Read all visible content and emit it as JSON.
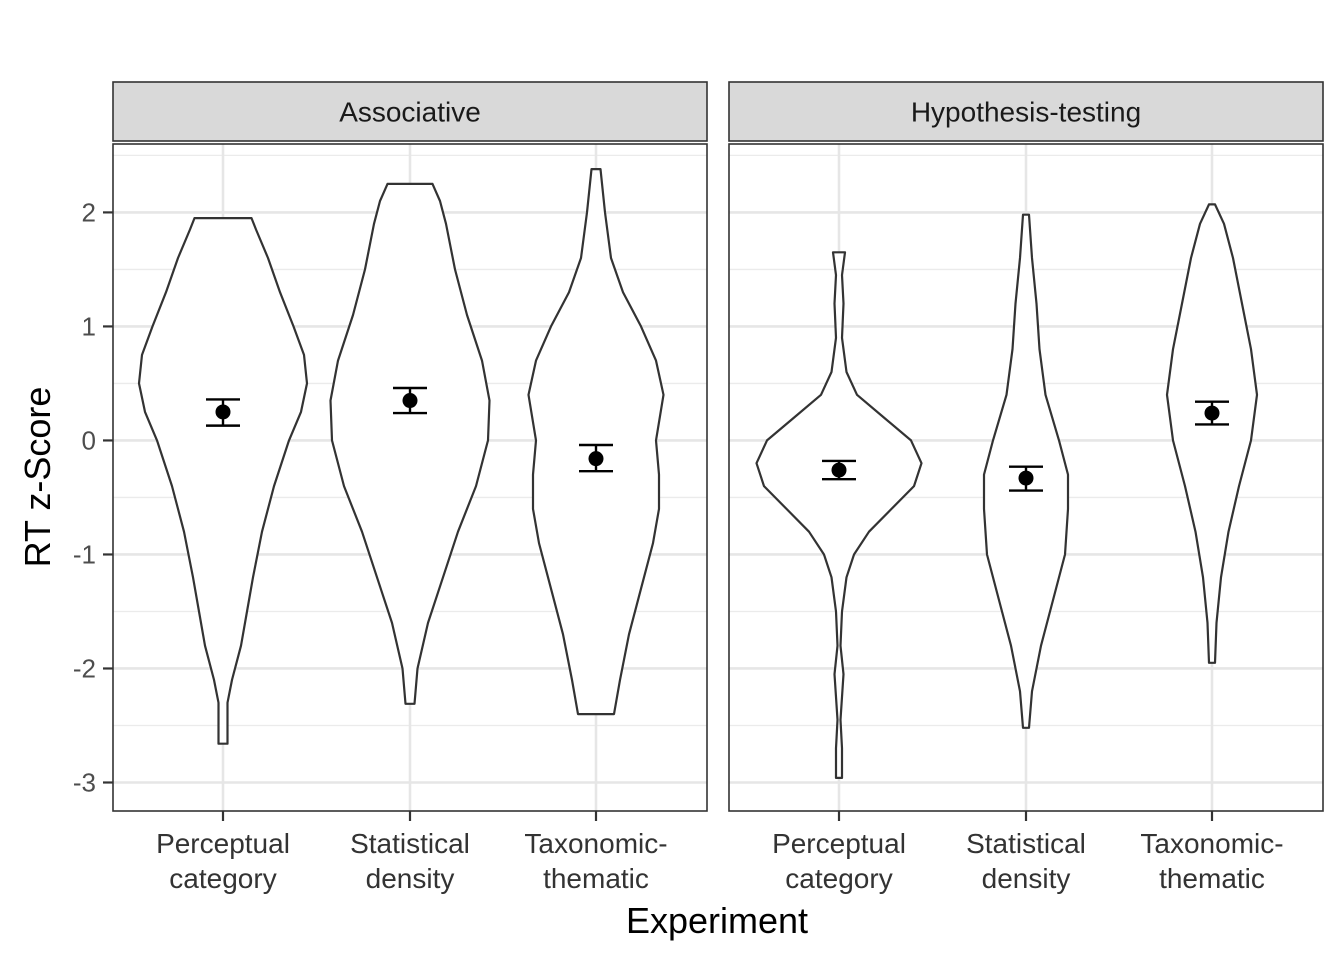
{
  "chart_data": {
    "type": "violin",
    "xlabel": "Experiment",
    "ylabel": "RT z-Score",
    "ylim": [
      -3.25,
      2.6
    ],
    "yticks": [
      -3,
      -2,
      -1,
      0,
      1,
      2
    ],
    "ytick_labels": [
      "-3",
      "-2",
      "-1",
      "0",
      "1",
      "2"
    ],
    "grid": true,
    "categories": [
      {
        "key": "perceptual",
        "lines": [
          "Perceptual",
          "category"
        ]
      },
      {
        "key": "statistical",
        "lines": [
          "Statistical",
          "density"
        ]
      },
      {
        "key": "taxonomic",
        "lines": [
          "Taxonomic-",
          "thematic"
        ]
      }
    ],
    "panels": [
      {
        "title": "Associative",
        "groups": [
          {
            "category": "perceptual",
            "mean": 0.25,
            "ci_low": 0.13,
            "ci_high": 0.36,
            "violin": [
              [
                -2.66,
                0.03
              ],
              [
                -2.3,
                0.03
              ],
              [
                -2.1,
                0.06
              ],
              [
                -1.8,
                0.12
              ],
              [
                -1.5,
                0.16
              ],
              [
                -1.2,
                0.2
              ],
              [
                -0.8,
                0.26
              ],
              [
                -0.4,
                0.34
              ],
              [
                0.0,
                0.44
              ],
              [
                0.25,
                0.52
              ],
              [
                0.5,
                0.56
              ],
              [
                0.75,
                0.54
              ],
              [
                1.0,
                0.47
              ],
              [
                1.3,
                0.38
              ],
              [
                1.6,
                0.3
              ],
              [
                1.85,
                0.22
              ],
              [
                1.95,
                0.19
              ]
            ]
          },
          {
            "category": "statistical",
            "mean": 0.35,
            "ci_low": 0.24,
            "ci_high": 0.46,
            "violin": [
              [
                -2.31,
                0.03
              ],
              [
                -2.0,
                0.05
              ],
              [
                -1.6,
                0.12
              ],
              [
                -1.2,
                0.22
              ],
              [
                -0.8,
                0.32
              ],
              [
                -0.4,
                0.44
              ],
              [
                0.0,
                0.52
              ],
              [
                0.35,
                0.53
              ],
              [
                0.7,
                0.48
              ],
              [
                1.1,
                0.38
              ],
              [
                1.5,
                0.3
              ],
              [
                1.9,
                0.24
              ],
              [
                2.1,
                0.2
              ],
              [
                2.25,
                0.15
              ]
            ]
          },
          {
            "category": "taxonomic",
            "mean": -0.16,
            "ci_low": -0.27,
            "ci_high": -0.04,
            "violin": [
              [
                -2.4,
                0.12
              ],
              [
                -2.1,
                0.16
              ],
              [
                -1.7,
                0.22
              ],
              [
                -1.3,
                0.3
              ],
              [
                -0.9,
                0.38
              ],
              [
                -0.6,
                0.42
              ],
              [
                -0.3,
                0.42
              ],
              [
                0.0,
                0.4
              ],
              [
                0.4,
                0.45
              ],
              [
                0.7,
                0.4
              ],
              [
                1.0,
                0.3
              ],
              [
                1.3,
                0.18
              ],
              [
                1.6,
                0.1
              ],
              [
                2.0,
                0.06
              ],
              [
                2.38,
                0.03
              ]
            ]
          }
        ]
      },
      {
        "title": "Hypothesis-testing",
        "groups": [
          {
            "category": "perceptual",
            "mean": -0.26,
            "ci_low": -0.34,
            "ci_high": -0.18,
            "violin": [
              [
                -2.96,
                0.02
              ],
              [
                -2.7,
                0.02
              ],
              [
                -2.45,
                0.01
              ],
              [
                -2.05,
                0.03
              ],
              [
                -1.8,
                0.01
              ],
              [
                -1.5,
                0.02
              ],
              [
                -1.2,
                0.05
              ],
              [
                -1.0,
                0.1
              ],
              [
                -0.8,
                0.2
              ],
              [
                -0.6,
                0.35
              ],
              [
                -0.4,
                0.5
              ],
              [
                -0.2,
                0.55
              ],
              [
                0.0,
                0.48
              ],
              [
                0.2,
                0.3
              ],
              [
                0.4,
                0.12
              ],
              [
                0.6,
                0.05
              ],
              [
                0.9,
                0.02
              ],
              [
                1.2,
                0.03
              ],
              [
                1.45,
                0.02
              ],
              [
                1.65,
                0.04
              ]
            ]
          },
          {
            "category": "statistical",
            "mean": -0.33,
            "ci_low": -0.44,
            "ci_high": -0.23,
            "violin": [
              [
                -2.52,
                0.02
              ],
              [
                -2.2,
                0.04
              ],
              [
                -1.8,
                0.1
              ],
              [
                -1.4,
                0.18
              ],
              [
                -1.0,
                0.26
              ],
              [
                -0.6,
                0.28
              ],
              [
                -0.3,
                0.28
              ],
              [
                0.0,
                0.22
              ],
              [
                0.4,
                0.13
              ],
              [
                0.8,
                0.09
              ],
              [
                1.2,
                0.07
              ],
              [
                1.6,
                0.04
              ],
              [
                1.98,
                0.02
              ]
            ]
          },
          {
            "category": "taxonomic",
            "mean": 0.24,
            "ci_low": 0.14,
            "ci_high": 0.34,
            "violin": [
              [
                -1.95,
                0.02
              ],
              [
                -1.6,
                0.03
              ],
              [
                -1.2,
                0.06
              ],
              [
                -0.8,
                0.11
              ],
              [
                -0.4,
                0.18
              ],
              [
                0.0,
                0.26
              ],
              [
                0.4,
                0.3
              ],
              [
                0.8,
                0.26
              ],
              [
                1.2,
                0.2
              ],
              [
                1.6,
                0.14
              ],
              [
                1.9,
                0.08
              ],
              [
                2.07,
                0.02
              ]
            ]
          }
        ]
      }
    ]
  }
}
